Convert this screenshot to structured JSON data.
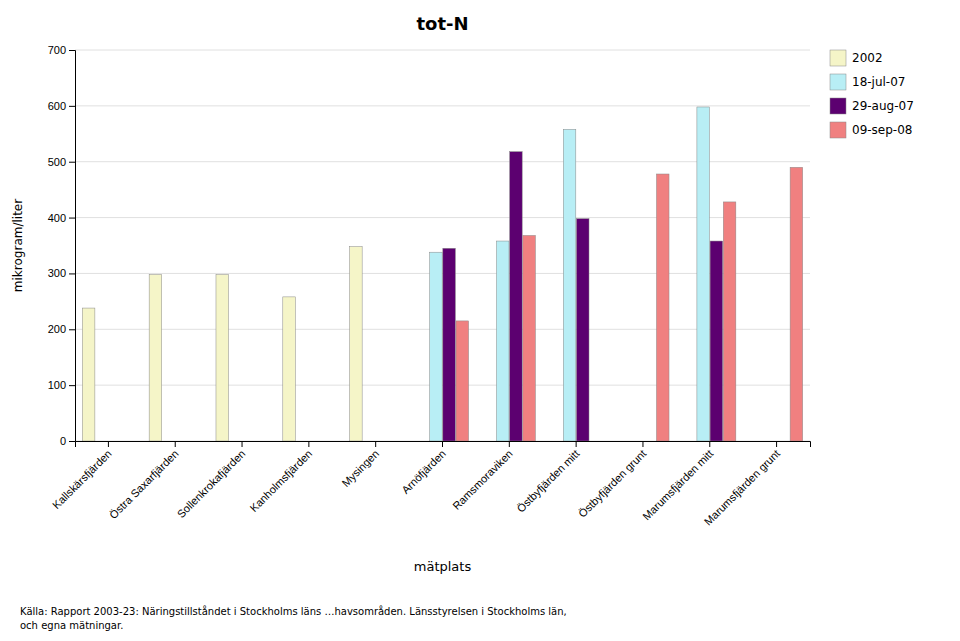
{
  "chart_data": {
    "type": "bar",
    "title": "tot-N",
    "xlabel": "mätplats",
    "ylabel": "mikrogram/liter",
    "categories": [
      "Kallskärsfjärden",
      "Östra Saxarfjärden",
      "Sollenkrokafjärden",
      "Kanholmsfjärden",
      "Mysingen",
      "Arnöfjärden",
      "Ramsmoraviken",
      "Östbyfjärden mitt",
      "Östbyfjärden grunt",
      "Marumsfjärden mitt",
      "Marumsfjärden grunt"
    ],
    "series": [
      {
        "name": "2002",
        "color": "#f5f5c8",
        "values": [
          238,
          298,
          298,
          258,
          348,
          null,
          null,
          null,
          null,
          null,
          null
        ]
      },
      {
        "name": "18-jul-07",
        "color": "#b8eef5",
        "values": [
          null,
          null,
          null,
          null,
          null,
          338,
          358,
          558,
          null,
          598,
          null
        ]
      },
      {
        "name": "29-aug-07",
        "color": "#5c0070",
        "values": [
          null,
          null,
          null,
          null,
          null,
          345,
          518,
          398,
          null,
          358,
          null
        ]
      },
      {
        "name": "09-sep-08",
        "color": "#f08080",
        "values": [
          null,
          null,
          null,
          null,
          null,
          215,
          368,
          null,
          478,
          428,
          490
        ]
      }
    ],
    "ylim": [
      0,
      700
    ],
    "yticks": [
      0,
      100,
      200,
      300,
      400,
      500,
      600,
      700
    ],
    "grid": true,
    "legend": "upper right",
    "annotations": [
      "Källa: Rapport 2003-23: Näringstillståndet i Stockholms läns …havsområden. Länsstyrelsen i Stockholms län,\noch egna mätningar."
    ]
  }
}
